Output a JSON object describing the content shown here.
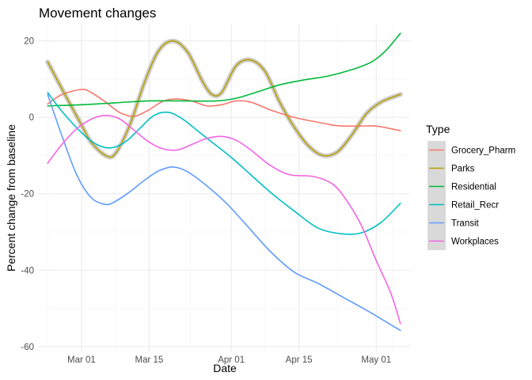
{
  "chart_data": {
    "type": "line",
    "title": "Movement changes",
    "xlabel": "Date",
    "ylabel": "Percent change from baseline",
    "x_axis": {
      "type": "date",
      "range": [
        "2020-02-21",
        "2020-05-08"
      ],
      "ticks": [
        {
          "date": "2020-03-01",
          "label": "Mar 01"
        },
        {
          "date": "2020-03-15",
          "label": "Mar 15"
        },
        {
          "date": "2020-04-01",
          "label": "Apr 01"
        },
        {
          "date": "2020-04-15",
          "label": "Apr 15"
        },
        {
          "date": "2020-05-01",
          "label": "May 01"
        }
      ]
    },
    "y_axis": {
      "range": [
        -61.5,
        24.5
      ],
      "ticks": [
        -60,
        -40,
        -20,
        0,
        20
      ]
    },
    "grid": true,
    "legend": {
      "title": "Type",
      "position": "right"
    },
    "series": [
      {
        "name": "Grocery_Pharm",
        "color": "#F8766D",
        "points": [
          [
            "2020-02-23",
            3.5
          ],
          [
            "2020-02-26",
            6.0
          ],
          [
            "2020-03-01",
            7.3
          ],
          [
            "2020-03-03",
            6.5
          ],
          [
            "2020-03-06",
            4.0
          ],
          [
            "2020-03-09",
            1.2
          ],
          [
            "2020-03-12",
            0.3
          ],
          [
            "2020-03-15",
            2.0
          ],
          [
            "2020-03-18",
            4.3
          ],
          [
            "2020-03-21",
            4.8
          ],
          [
            "2020-03-24",
            4.2
          ],
          [
            "2020-03-27",
            3.0
          ],
          [
            "2020-03-30",
            3.3
          ],
          [
            "2020-04-02",
            4.3
          ],
          [
            "2020-04-05",
            4.0
          ],
          [
            "2020-04-09",
            2.0
          ],
          [
            "2020-04-14",
            0.0
          ],
          [
            "2020-04-19",
            -1.3
          ],
          [
            "2020-04-23",
            -2.2
          ],
          [
            "2020-04-27",
            -2.3
          ],
          [
            "2020-05-01",
            -2.3
          ],
          [
            "2020-05-06",
            -3.5
          ]
        ]
      },
      {
        "name": "Parks",
        "color": "#B79F00",
        "band": true,
        "points": [
          [
            "2020-02-23",
            14.5
          ],
          [
            "2020-02-27",
            5.0
          ],
          [
            "2020-03-01",
            -2.0
          ],
          [
            "2020-03-03",
            -6.5
          ],
          [
            "2020-03-06",
            -10.0
          ],
          [
            "2020-03-08",
            -9.5
          ],
          [
            "2020-03-11",
            -2.0
          ],
          [
            "2020-03-14",
            9.0
          ],
          [
            "2020-03-17",
            17.5
          ],
          [
            "2020-03-20",
            20.0
          ],
          [
            "2020-03-23",
            17.0
          ],
          [
            "2020-03-26",
            9.5
          ],
          [
            "2020-03-28",
            6.0
          ],
          [
            "2020-03-30",
            6.5
          ],
          [
            "2020-04-02",
            13.5
          ],
          [
            "2020-04-05",
            15.0
          ],
          [
            "2020-04-08",
            12.0
          ],
          [
            "2020-04-11",
            4.0
          ],
          [
            "2020-04-14",
            -2.5
          ],
          [
            "2020-04-17",
            -7.5
          ],
          [
            "2020-04-20",
            -10.0
          ],
          [
            "2020-04-23",
            -9.0
          ],
          [
            "2020-04-26",
            -4.5
          ],
          [
            "2020-04-29",
            1.0
          ],
          [
            "2020-05-02",
            4.0
          ],
          [
            "2020-05-06",
            6.0
          ]
        ]
      },
      {
        "name": "Residential",
        "color": "#00BA38",
        "points": [
          [
            "2020-02-23",
            3.0
          ],
          [
            "2020-03-01",
            3.3
          ],
          [
            "2020-03-08",
            3.8
          ],
          [
            "2020-03-15",
            4.3
          ],
          [
            "2020-03-22",
            4.3
          ],
          [
            "2020-03-29",
            4.3
          ],
          [
            "2020-04-02",
            5.0
          ],
          [
            "2020-04-06",
            6.5
          ],
          [
            "2020-04-11",
            8.5
          ],
          [
            "2020-04-16",
            9.8
          ],
          [
            "2020-04-21",
            10.8
          ],
          [
            "2020-04-26",
            12.5
          ],
          [
            "2020-04-30",
            14.5
          ],
          [
            "2020-05-03",
            17.5
          ],
          [
            "2020-05-06",
            22.0
          ]
        ]
      },
      {
        "name": "Retail_Recr",
        "color": "#00BFC4",
        "points": [
          [
            "2020-02-23",
            6.5
          ],
          [
            "2020-02-26",
            1.5
          ],
          [
            "2020-03-01",
            -4.0
          ],
          [
            "2020-03-04",
            -7.0
          ],
          [
            "2020-03-07",
            -8.0
          ],
          [
            "2020-03-10",
            -6.5
          ],
          [
            "2020-03-13",
            -3.0
          ],
          [
            "2020-03-16",
            0.5
          ],
          [
            "2020-03-19",
            1.3
          ],
          [
            "2020-03-22",
            -0.5
          ],
          [
            "2020-03-25",
            -3.5
          ],
          [
            "2020-03-28",
            -6.5
          ],
          [
            "2020-04-01",
            -10.5
          ],
          [
            "2020-04-05",
            -15.0
          ],
          [
            "2020-04-09",
            -19.5
          ],
          [
            "2020-04-14",
            -24.5
          ],
          [
            "2020-04-19",
            -29.0
          ],
          [
            "2020-04-24",
            -30.5
          ],
          [
            "2020-04-28",
            -30.2
          ],
          [
            "2020-05-02",
            -27.5
          ],
          [
            "2020-05-06",
            -22.5
          ]
        ]
      },
      {
        "name": "Transit",
        "color": "#619CFF",
        "points": [
          [
            "2020-02-23",
            6.0
          ],
          [
            "2020-02-26",
            -5.0
          ],
          [
            "2020-02-29",
            -15.0
          ],
          [
            "2020-03-03",
            -21.0
          ],
          [
            "2020-03-06",
            -22.8
          ],
          [
            "2020-03-08",
            -22.0
          ],
          [
            "2020-03-11",
            -19.5
          ],
          [
            "2020-03-14",
            -16.5
          ],
          [
            "2020-03-17",
            -14.0
          ],
          [
            "2020-03-20",
            -13.0
          ],
          [
            "2020-03-23",
            -14.3
          ],
          [
            "2020-03-27",
            -18.0
          ],
          [
            "2020-03-31",
            -22.5
          ],
          [
            "2020-04-04",
            -28.0
          ],
          [
            "2020-04-09",
            -35.0
          ],
          [
            "2020-04-14",
            -40.5
          ],
          [
            "2020-04-19",
            -43.5
          ],
          [
            "2020-04-24",
            -47.0
          ],
          [
            "2020-04-29",
            -50.5
          ],
          [
            "2020-05-03",
            -53.5
          ],
          [
            "2020-05-06",
            -55.8
          ]
        ]
      },
      {
        "name": "Workplaces",
        "color": "#F564E3",
        "points": [
          [
            "2020-02-23",
            -12.0
          ],
          [
            "2020-02-26",
            -7.0
          ],
          [
            "2020-02-29",
            -3.0
          ],
          [
            "2020-03-03",
            -0.5
          ],
          [
            "2020-03-06",
            0.5
          ],
          [
            "2020-03-09",
            -0.5
          ],
          [
            "2020-03-12",
            -3.5
          ],
          [
            "2020-03-15",
            -6.5
          ],
          [
            "2020-03-18",
            -8.3
          ],
          [
            "2020-03-21",
            -8.5
          ],
          [
            "2020-03-24",
            -7.0
          ],
          [
            "2020-03-27",
            -5.5
          ],
          [
            "2020-03-30",
            -5.0
          ],
          [
            "2020-04-02",
            -6.0
          ],
          [
            "2020-04-05",
            -8.5
          ],
          [
            "2020-04-09",
            -12.5
          ],
          [
            "2020-04-13",
            -15.0
          ],
          [
            "2020-04-18",
            -15.5
          ],
          [
            "2020-04-22",
            -17.5
          ],
          [
            "2020-04-25",
            -22.0
          ],
          [
            "2020-04-28",
            -28.5
          ],
          [
            "2020-05-01",
            -37.5
          ],
          [
            "2020-05-04",
            -46.0
          ],
          [
            "2020-05-06",
            -54.0
          ]
        ]
      }
    ]
  }
}
